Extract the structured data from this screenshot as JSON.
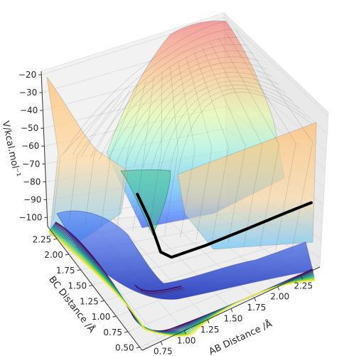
{
  "chart_data": {
    "type": "surface",
    "view": "3d-perspective",
    "surface_colormap": "jet (translucent)",
    "contour_colormap": "viridis",
    "z_axis": {
      "label": "V/kcal.mol⁻¹",
      "ticks": [
        -20,
        -30,
        -40,
        -50,
        -60,
        -70,
        -80,
        -90,
        -100
      ],
      "tick_labels": [
        "−20",
        "−30",
        "−40",
        "−50",
        "−60",
        "−70",
        "−80",
        "−90",
        "−100"
      ]
    },
    "bc_axis": {
      "label": "BC Distance /Å",
      "ticks": [
        2.25,
        2.0,
        1.75,
        1.5,
        1.25,
        1.0,
        0.75,
        0.5
      ],
      "tick_labels": [
        "2.25",
        "2.00",
        "1.75",
        "1.50",
        "1.25",
        "1.00",
        "0.75",
        "0.50"
      ]
    },
    "ab_axis": {
      "label": "AB Distance /Å",
      "ticks": [
        0.75,
        1.0,
        1.25,
        1.5,
        1.75,
        2.0,
        2.25
      ],
      "tick_labels": [
        "0.75",
        "1.00",
        "1.25",
        "1.50",
        "1.75",
        "2.00",
        "2.25"
      ]
    },
    "trajectory": {
      "color": "#000000",
      "points_ab_bc": [
        [
          1.3,
          2.05
        ],
        [
          1.2,
          1.6
        ],
        [
          1.05,
          1.05
        ],
        [
          1.1,
          0.92
        ],
        [
          1.45,
          0.9
        ],
        [
          1.9,
          0.91
        ],
        [
          2.3,
          0.93
        ],
        [
          2.6,
          0.94
        ]
      ]
    },
    "grid": true
  }
}
